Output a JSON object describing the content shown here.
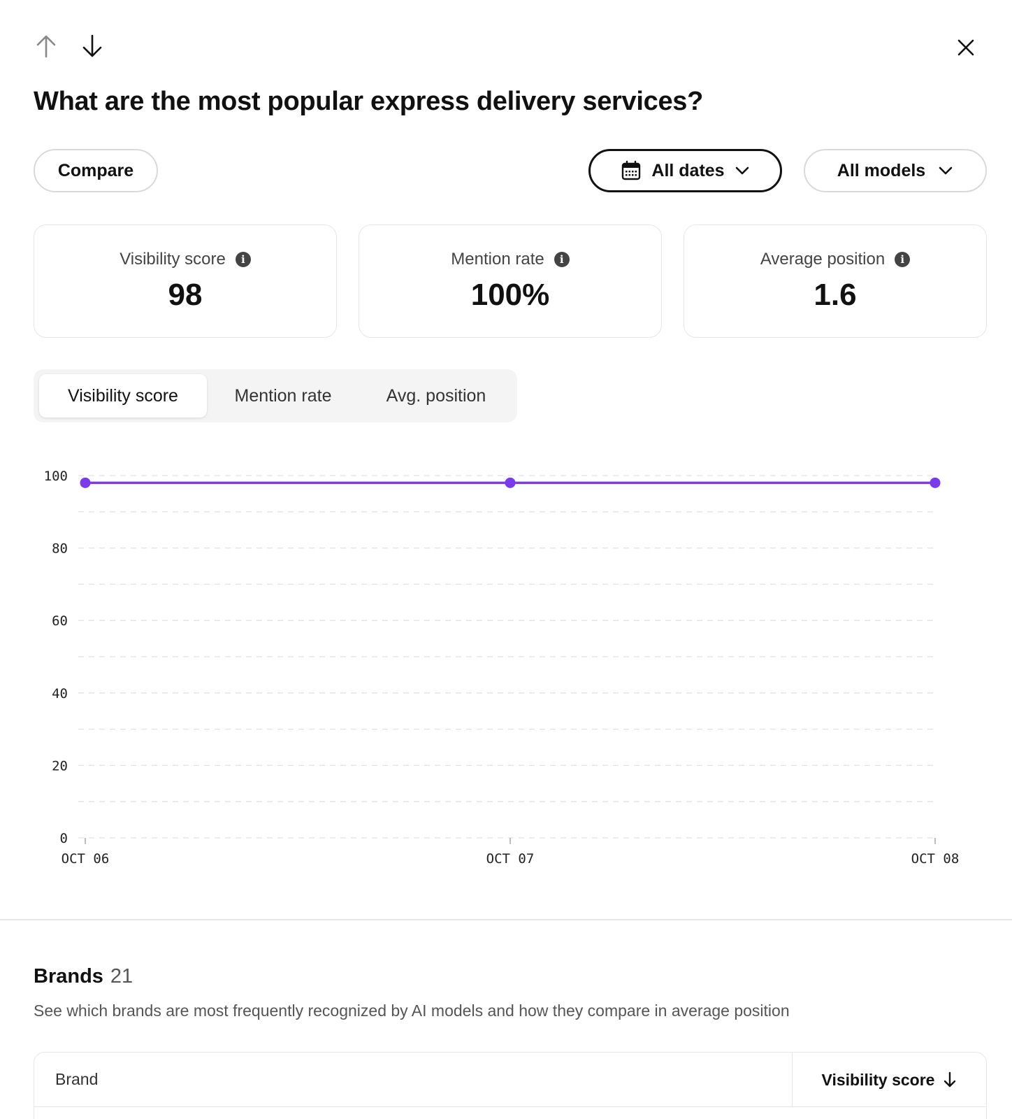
{
  "header": {
    "title": "What are the most popular express delivery services?"
  },
  "nav": {
    "up_icon": "arrow-up-icon",
    "down_icon": "arrow-down-icon",
    "close_icon": "close-icon"
  },
  "filters": {
    "compare_label": "Compare",
    "dates_label": "All dates",
    "models_label": "All models"
  },
  "metrics": [
    {
      "label": "Visibility score",
      "value": "98"
    },
    {
      "label": "Mention rate",
      "value": "100%"
    },
    {
      "label": "Average position",
      "value": "1.6"
    }
  ],
  "tabs": [
    {
      "label": "Visibility score",
      "active": true
    },
    {
      "label": "Mention rate",
      "active": false
    },
    {
      "label": "Avg. position",
      "active": false
    }
  ],
  "chart_data": {
    "type": "line",
    "x": [
      "OCT 06",
      "OCT 07",
      "OCT 08"
    ],
    "series": [
      {
        "values": [
          98,
          98,
          98
        ],
        "color": "#7c3aed"
      }
    ],
    "yticks": [
      0,
      20,
      40,
      60,
      80,
      100
    ],
    "ylim": [
      0,
      100
    ],
    "grid": true
  },
  "brands": {
    "title": "Brands",
    "count": "21",
    "description": "See which brands are most frequently recognized by AI models and how they compare in average position",
    "columns": {
      "brand": "Brand",
      "score": "Visibility score"
    }
  }
}
